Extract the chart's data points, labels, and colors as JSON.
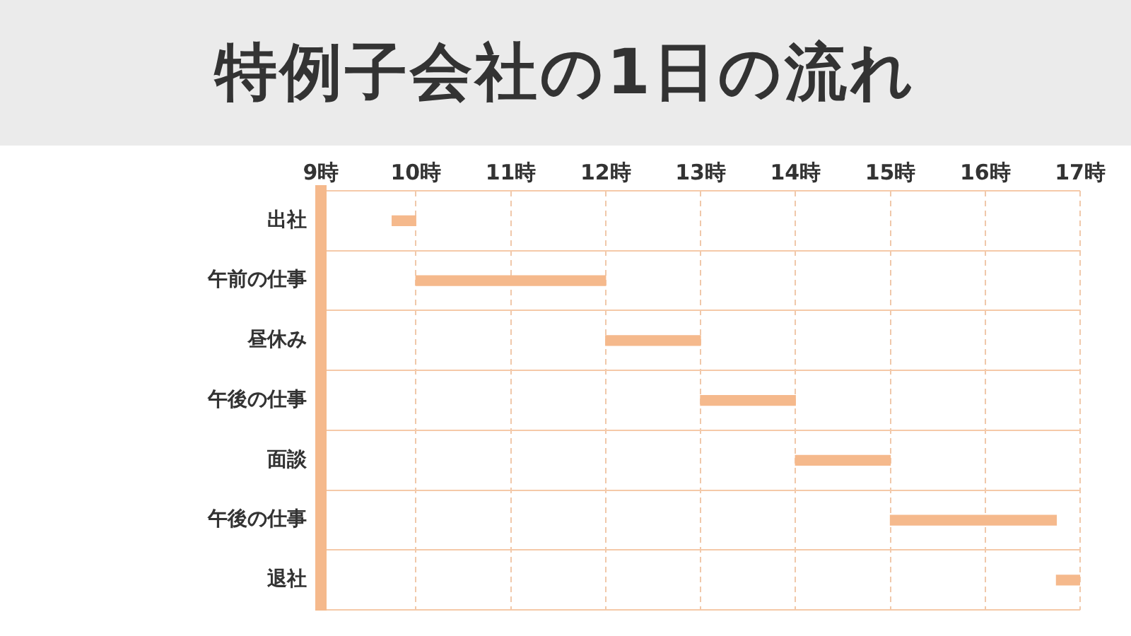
{
  "chart_data": {
    "type": "bar",
    "orientation": "horizontal",
    "title": "特例子会社の1日の流れ",
    "categories": [
      "出社",
      "午前の仕事",
      "昼休み",
      "午後の仕事",
      "面談",
      "午後の仕事",
      "退社"
    ],
    "base": [
      9.75,
      10,
      12,
      13,
      14,
      15,
      16.75
    ],
    "values": [
      0.25,
      2,
      1,
      1,
      1,
      1.75,
      0.25
    ],
    "color": "#f5b98c",
    "xlim": [
      9,
      17
    ],
    "xticks": [
      {
        "value": 9,
        "label": "9時"
      },
      {
        "value": 10,
        "label": "10時"
      },
      {
        "value": 11,
        "label": "11時"
      },
      {
        "value": 12,
        "label": "12時"
      },
      {
        "value": 13,
        "label": "13時"
      },
      {
        "value": 14,
        "label": "14時"
      },
      {
        "value": 15,
        "label": "15時"
      },
      {
        "value": 16,
        "label": "16時"
      },
      {
        "value": 17,
        "label": "17時"
      }
    ],
    "grid": true
  }
}
